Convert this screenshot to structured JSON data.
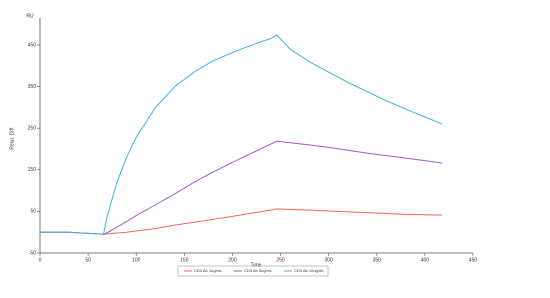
{
  "chart_data": {
    "type": "line",
    "y_unit": "RU",
    "y_label": "Resp. Diff.",
    "x_label": "Time",
    "x": [
      0,
      30,
      66,
      70,
      80,
      90,
      100,
      120,
      140,
      160,
      180,
      200,
      220,
      240,
      246,
      260,
      280,
      300,
      320,
      340,
      360,
      380,
      400,
      418
    ],
    "series": [
      {
        "name": "CD3 Ab 1ug/mL",
        "color": "#f06a5a",
        "values": [
          0,
          0,
          -5,
          -4,
          -2,
          0,
          3,
          9,
          17,
          24,
          31,
          38,
          46,
          53,
          56,
          55,
          53,
          51,
          49,
          47,
          45,
          43,
          42,
          41
        ]
      },
      {
        "name": "CD3 Ab 5ug/mL",
        "color": "#a05cc8",
        "values": [
          0,
          0,
          -5,
          -1,
          12,
          26,
          40,
          66,
          92,
          120,
          145,
          168,
          190,
          212,
          219,
          215,
          210,
          204,
          197,
          190,
          184,
          178,
          172,
          166
        ]
      },
      {
        "name": "CD3 Ab 10ug/mL",
        "color": "#3fb4e0",
        "values": [
          0,
          0,
          -5,
          40,
          120,
          180,
          228,
          300,
          350,
          385,
          412,
          432,
          450,
          466,
          474,
          440,
          410,
          385,
          360,
          338,
          316,
          296,
          277,
          260
        ]
      }
    ],
    "xlim": [
      0,
      450
    ],
    "xticks": [
      0,
      50,
      100,
      150,
      200,
      250,
      300,
      350,
      400,
      450
    ],
    "ylim": [
      -50,
      515
    ],
    "yticks": [
      -50,
      50,
      150,
      250,
      350,
      450
    ],
    "grid": false
  }
}
